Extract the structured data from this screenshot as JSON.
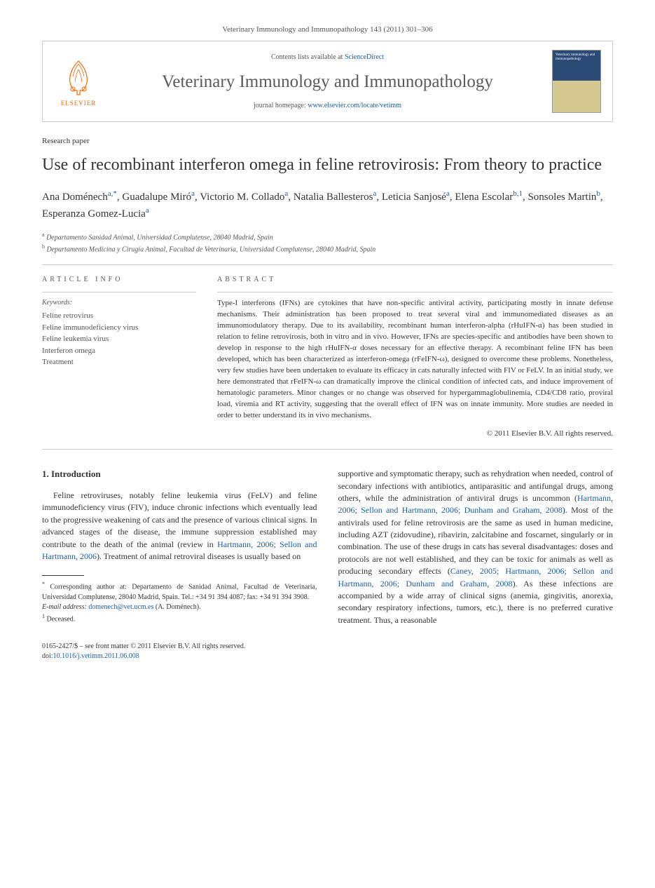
{
  "citation": "Veterinary Immunology and Immunopathology 143 (2011) 301–306",
  "banner": {
    "contents_prefix": "Contents lists available at ",
    "contents_link": "ScienceDirect",
    "journal_name": "Veterinary Immunology and Immunopathology",
    "homepage_prefix": "journal homepage: ",
    "homepage_url": "www.elsevier.com/locate/vetimm",
    "elsevier_label": "ELSEVIER",
    "cover_title": "Veterinary immunology and immunopathology"
  },
  "paper_type": "Research paper",
  "title": "Use of recombinant interferon omega in feline retrovirosis: From theory to practice",
  "authors_html": "Ana Doménech<sup class='aff'>a,*</sup>, Guadalupe Miró<sup class='aff'>a</sup>, Victorio M. Collado<sup class='aff'>a</sup>, Natalia Ballesteros<sup class='aff'>a</sup>, Leticia Sanjosé<sup class='aff'>a</sup>, Elena Escolar<sup class='aff'>b,1</sup>, Sonsoles Martin<sup class='aff'>b</sup>, Esperanza Gomez-Lucia<sup class='aff'>a</sup>",
  "affiliations": [
    {
      "sup": "a",
      "text": "Departamento Sanidad Animal, Universidad Complutense, 28040 Madrid, Spain"
    },
    {
      "sup": "b",
      "text": "Departamento Medicina y Cirugía Animal, Facultad de Veterinaria, Universidad Complutense, 28040 Madrid, Spain"
    }
  ],
  "info": {
    "heading": "ARTICLE INFO",
    "keywords_label": "Keywords:",
    "keywords": "Feline retrovirus\nFeline immunodeficiency virus\nFeline leukemia virus\nInterferon omega\nTreatment"
  },
  "abstract": {
    "heading": "ABSTRACT",
    "text": "Type-I interferons (IFNs) are cytokines that have non-specific antiviral activity, participating mostly in innate defense mechanisms. Their administration has been proposed to treat several viral and immunomediated diseases as an immunomodulatory therapy. Due to its availability, recombinant human interferon-alpha (rHuIFN-α) has been studied in relation to feline retrovirosis, both in vitro and in vivo. However, IFNs are species-specific and antibodies have been shown to develop in response to the high rHuIFN-α doses necessary for an effective therapy. A recombinant feline IFN has been developed, which has been characterized as interferon-omega (rFeIFN-ω), designed to overcome these problems. Nonetheless, very few studies have been undertaken to evaluate its efficacy in cats naturally infected with FIV or FeLV. In an initial study, we here demonstrated that rFeIFN-ω can dramatically improve the clinical condition of infected cats, and induce improvement of hematologic parameters. Minor changes or no change was observed for hypergammaglobulinemia, CD4/CD8 ratio, proviral load, viremia and RT activity, suggesting that the overall effect of IFN was on innate immunity. More studies are needed in order to better understand its in vivo mechanisms.",
    "copyright": "© 2011 Elsevier B.V. All rights reserved."
  },
  "body": {
    "section_heading": "1. Introduction",
    "col1_html": "Feline retroviruses, notably feline leukemia virus (FeLV) and feline immunodeficiency virus (FIV), induce chronic infections which eventually lead to the progressive weakening of cats and the presence of various clinical signs. In advanced stages of the disease, the immune suppression established may contribute to the death of the animal (review in <a href='#' class='ref-link'>Hartmann, 2006; Sellon and Hartmann, 2006</a>). Treatment of animal retroviral diseases is usually based on",
    "col2_html": "supportive and symptomatic therapy, such as rehydration when needed, control of secondary infections with antibiotics, antiparasitic and antifungal drugs, among others, while the administration of antiviral drugs is uncommon (<a href='#' class='ref-link'>Hartmann, 2006; Sellon and Hartmann, 2006; Dunham and Graham, 2008</a>). Most of the antivirals used for feline retrovirosis are the same as used in human medicine, including AZT (zidovudine), ribavirin, zalcitabine and foscarnet, singularly or in combination. The use of these drugs in cats has several disadvantages: doses and protocols are not well established, and they can be toxic for animals as well as producing secondary effects (<a href='#' class='ref-link'>Caney, 2005; Hartmann, 2006; Sellon and Hartmann, 2006; Dunham and Graham, 2008</a>). As these infections are accompanied by a wide array of clinical signs (anemia, gingivitis, anorexia, secondary respiratory infections, tumors, etc.), there is no preferred curative treatment. Thus, a reasonable"
  },
  "footnotes": {
    "corr": "Corresponding author at: Departamento de Sanidad Animal, Facultad de Veterinaria, Universidad Complutense, 28040 Madrid, Spain. Tel.: +34 91 394 4087; fax: +34 91 394 3908.",
    "email_label": "E-mail address:",
    "email": "domenech@vet.ucm.es",
    "email_author": "(A. Doménech).",
    "note1": "Deceased."
  },
  "footer": {
    "line1": "0165-2427/$ – see front matter © 2011 Elsevier B.V. All rights reserved.",
    "doi_label": "doi:",
    "doi": "10.1016/j.vetimm.2011.06.008"
  },
  "colors": {
    "link": "#1a5da8",
    "elsevier_orange": "#ff6600",
    "text": "#333333",
    "muted": "#555555",
    "border": "#cccccc",
    "cover_bg": "#2b4a75"
  }
}
